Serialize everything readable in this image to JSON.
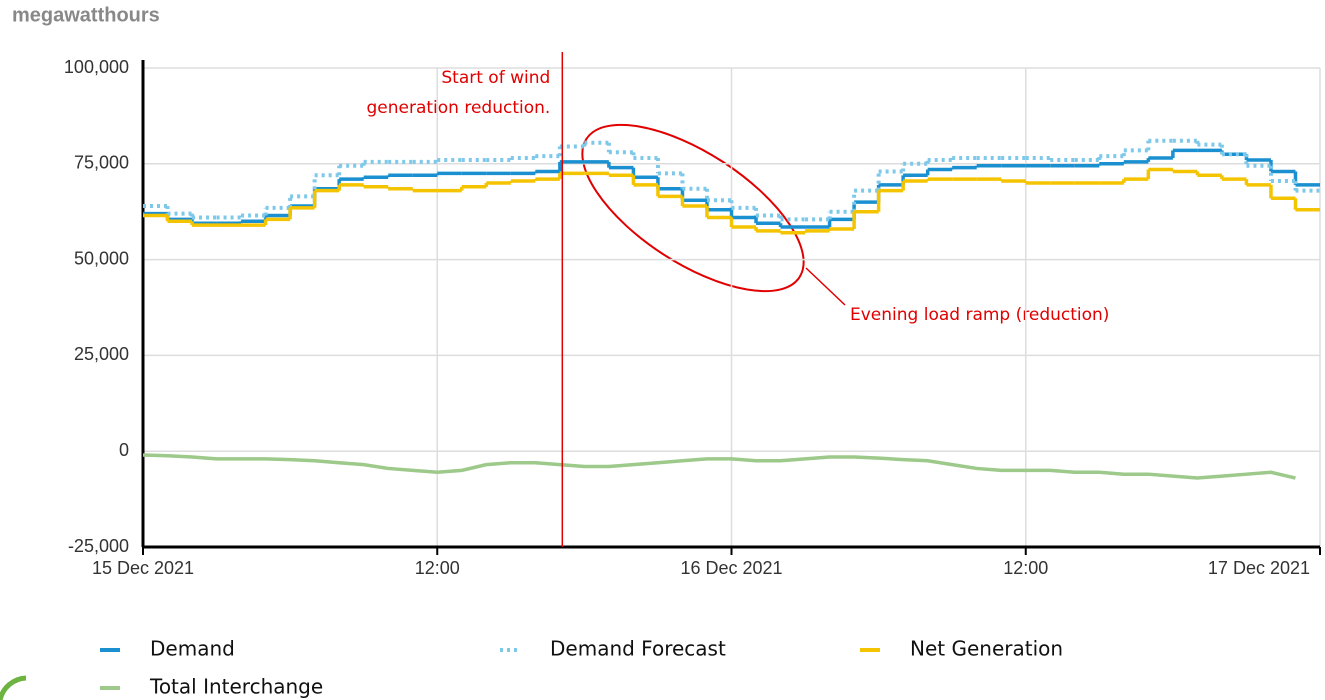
{
  "chart_data": {
    "type": "step",
    "title": "megawatthours",
    "x": [
      0,
      1,
      2,
      3,
      4,
      5,
      6,
      7,
      8,
      9,
      10,
      11,
      12,
      13,
      14,
      15,
      16,
      17,
      18,
      19,
      20,
      21,
      22,
      23,
      24,
      25,
      26,
      27,
      28,
      29,
      30,
      31,
      32,
      33,
      34,
      35,
      36,
      37,
      38,
      39,
      40,
      41,
      42,
      43,
      44,
      45,
      46,
      47
    ],
    "xlim": [
      0,
      48
    ],
    "xticks": [
      {
        "value": 0,
        "label": "15 Dec 2021"
      },
      {
        "value": 12,
        "label": "12:00"
      },
      {
        "value": 24,
        "label": "16 Dec 2021"
      },
      {
        "value": 36,
        "label": "12:00"
      },
      {
        "value": 48,
        "label": "17 Dec 2021"
      }
    ],
    "ylim": [
      -25000,
      100000
    ],
    "yticks": [
      {
        "value": -25000,
        "label": "-25,000"
      },
      0,
      {
        "value": 25000,
        "label": "25,000"
      },
      {
        "value": 50000,
        "label": "50,000"
      },
      {
        "value": 75000,
        "label": "75,000"
      },
      {
        "value": 100000,
        "label": "100,000"
      }
    ],
    "grid": true,
    "series": [
      {
        "name": "Demand",
        "color": "#1a90d0",
        "style": "solid",
        "values": [
          62000,
          60500,
          59500,
          59500,
          60000,
          61500,
          64000,
          68500,
          71000,
          71500,
          72000,
          72000,
          72500,
          72500,
          72500,
          72500,
          73000,
          75500,
          75500,
          74000,
          71500,
          68500,
          65500,
          63000,
          61000,
          59500,
          58500,
          58500,
          60500,
          65000,
          69500,
          72000,
          73500,
          74000,
          74500,
          74500,
          74500,
          74500,
          74500,
          75000,
          75500,
          76500,
          78500,
          78500,
          77500,
          76000,
          73000,
          69500
        ]
      },
      {
        "name": "Demand Forecast",
        "color": "#7ec8ea",
        "style": "dotted",
        "values": [
          64000,
          62000,
          61000,
          61000,
          61500,
          63500,
          66500,
          72000,
          74500,
          75500,
          75500,
          75500,
          76000,
          76000,
          76000,
          76500,
          77000,
          79500,
          80500,
          78000,
          76500,
          72500,
          68500,
          65500,
          63500,
          61500,
          60500,
          60500,
          62500,
          68000,
          73000,
          75000,
          76000,
          76500,
          76500,
          76500,
          76500,
          76000,
          76000,
          77000,
          78500,
          81000,
          81000,
          80000,
          77500,
          74500,
          70500,
          68000
        ]
      },
      {
        "name": "Net Generation",
        "color": "#f5c400",
        "style": "solid",
        "values": [
          61500,
          60000,
          59000,
          59000,
          59000,
          60500,
          63500,
          68000,
          69500,
          69000,
          68500,
          68000,
          68000,
          69000,
          70000,
          70500,
          71000,
          72500,
          72500,
          72000,
          69500,
          66500,
          64000,
          61000,
          58500,
          57500,
          57000,
          57500,
          58000,
          62500,
          68000,
          70500,
          71000,
          71000,
          71000,
          70500,
          70000,
          70000,
          70000,
          70000,
          71000,
          73500,
          73000,
          72000,
          71000,
          69500,
          66000,
          63000
        ]
      },
      {
        "name": "Total Interchange",
        "color": "#9dc98a",
        "style": "line",
        "values": [
          -1000,
          -1200,
          -1500,
          -2000,
          -2000,
          -2000,
          -2200,
          -2500,
          -3000,
          -3500,
          -4500,
          -5000,
          -5500,
          -5000,
          -3500,
          -3000,
          -3000,
          -3500,
          -4000,
          -4000,
          -3500,
          -3000,
          -2500,
          -2000,
          -2000,
          -2500,
          -2500,
          -2000,
          -1500,
          -1500,
          -1800,
          -2200,
          -2500,
          -3500,
          -4500,
          -5000,
          -5000,
          -5000,
          -5500,
          -5500,
          -6000,
          -6000,
          -6500,
          -7000,
          -6500,
          -6000,
          -5500,
          -7000
        ]
      }
    ],
    "annotations": [
      {
        "lines": [
          "Start of wind",
          "generation reduction."
        ],
        "x": 17.1
      },
      {
        "text": "Evening load ramp (reduction)"
      }
    ]
  }
}
